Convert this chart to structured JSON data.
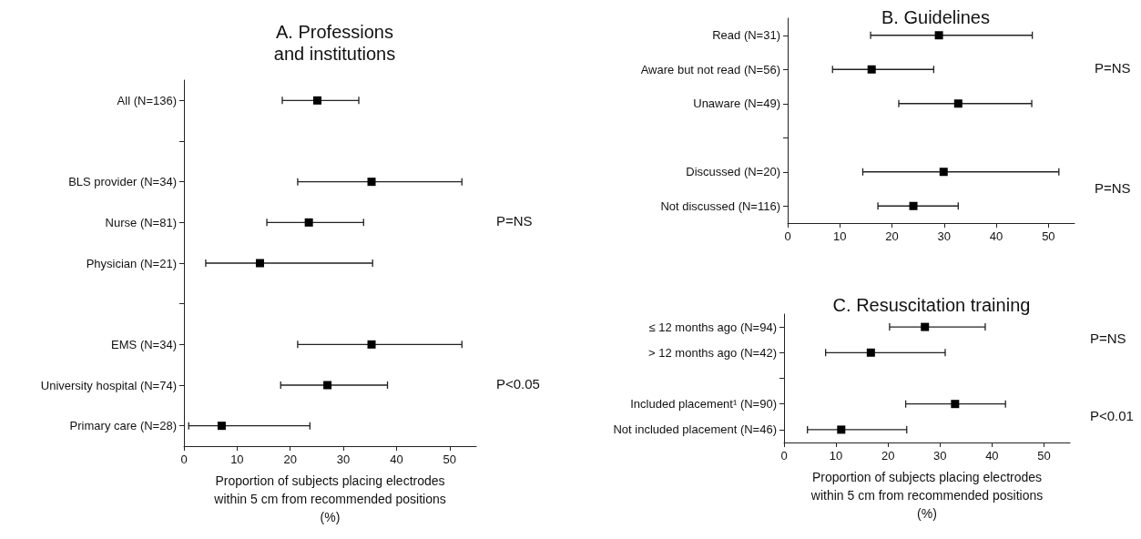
{
  "chart_data": [
    {
      "type": "scatter",
      "title": "A. Professions\nand institutions",
      "xlabel": "Proportion of subjects placing electrodes\nwithin 5 cm from recommended positions\n(%)",
      "orientation": "horizontal",
      "marker": "square",
      "color": "#000000",
      "categories": [
        "All (N=136)",
        null,
        "BLS provider (N=34)",
        "Nurse (N=81)",
        "Physician (N=21)",
        null,
        "EMS (N=34)",
        "University hospital (N=74)",
        "Primary care (N=28)"
      ],
      "values": [
        25.1,
        null,
        35.3,
        23.5,
        14.3,
        null,
        35.3,
        27.0,
        7.1
      ],
      "errors": [
        [
          18.5,
          32.9
        ],
        null,
        [
          21.4,
          52.3
        ],
        [
          15.6,
          33.8
        ],
        [
          4.1,
          35.5
        ],
        null,
        [
          21.4,
          52.3
        ],
        [
          18.2,
          38.3
        ],
        [
          0.9,
          23.7
        ]
      ],
      "xlim": [
        0,
        55
      ],
      "xticks": [
        0,
        10,
        20,
        30,
        40,
        50
      ],
      "annotations": [
        "P=NS",
        "P<0.05"
      ]
    },
    {
      "type": "scatter",
      "title": "B. Guidelines",
      "orientation": "horizontal",
      "marker": "square",
      "color": "#000000",
      "categories": [
        "Read (N=31)",
        "Aware but not read (N=56)",
        "Unaware (N=49)",
        null,
        "Discussed (N=20)",
        "Not discussed (N=116)"
      ],
      "values": [
        29.0,
        16.1,
        32.7,
        null,
        29.9,
        24.1
      ],
      "errors": [
        [
          15.9,
          46.9
        ],
        [
          8.6,
          28.0
        ],
        [
          21.3,
          46.8
        ],
        null,
        [
          14.4,
          52.0
        ],
        [
          17.3,
          32.7
        ]
      ],
      "xlim": [
        0,
        55
      ],
      "xticks": [
        0,
        10,
        20,
        30,
        40,
        50
      ],
      "annotations": [
        "P=NS",
        "P=NS"
      ]
    },
    {
      "type": "scatter",
      "title": "C. Resuscitation training",
      "xlabel": "Proportion of subjects placing electrodes\nwithin 5 cm from recommended positions\n(%)",
      "orientation": "horizontal",
      "marker": "square",
      "color": "#000000",
      "categories": [
        "≤ 12 months ago (N=94)",
        "> 12 months ago (N=42)",
        null,
        "Included placement¹ (N=90)",
        "Not included placement (N=46)"
      ],
      "values": [
        27.1,
        16.7,
        null,
        32.9,
        11.0
      ],
      "errors": [
        [
          20.3,
          38.7
        ],
        [
          8.0,
          31.0
        ],
        null,
        [
          23.4,
          42.6
        ],
        [
          4.5,
          23.6
        ]
      ],
      "xlim": [
        0,
        55
      ],
      "xticks": [
        0,
        10,
        20,
        30,
        40,
        50
      ],
      "annotations": [
        "P=NS",
        "P<0.01"
      ]
    }
  ]
}
